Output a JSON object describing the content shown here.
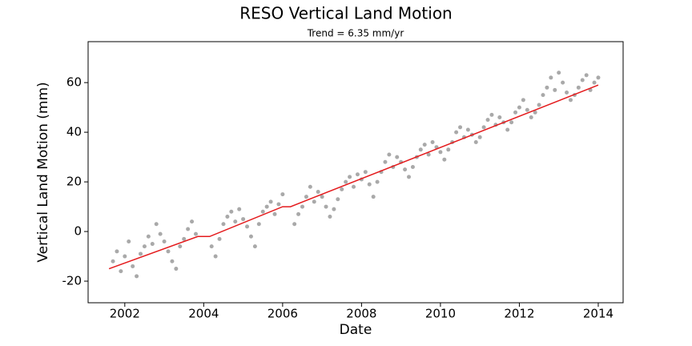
{
  "chart_data": {
    "type": "scatter",
    "title": "RESO Vertical Land Motion",
    "subtitle": "Trend = 6.35 mm/yr",
    "x_label": "Date",
    "y_label": "Vertical Land Motion (mm)",
    "xlim": [
      2001.07,
      2014.63
    ],
    "ylim": [
      -28.7,
      76.5
    ],
    "xticks": [
      2002,
      2004,
      2006,
      2008,
      2010,
      2012,
      2014
    ],
    "yticks": [
      -20,
      0,
      20,
      40,
      60
    ],
    "grid": false,
    "series": [
      {
        "kind": "points",
        "color": "#a9a9a9",
        "x": [
          2001.7,
          2001.8,
          2001.9,
          2002.0,
          2002.1,
          2002.2,
          2002.3,
          2002.4,
          2002.5,
          2002.6,
          2002.7,
          2002.8,
          2002.9,
          2003.0,
          2003.1,
          2003.2,
          2003.3,
          2003.4,
          2003.5,
          2003.6,
          2003.7,
          2003.8,
          2004.2,
          2004.3,
          2004.4,
          2004.5,
          2004.6,
          2004.7,
          2004.8,
          2004.9,
          2005.0,
          2005.1,
          2005.2,
          2005.3,
          2005.4,
          2005.5,
          2005.6,
          2005.7,
          2005.8,
          2005.9,
          2006.0,
          2006.3,
          2006.4,
          2006.5,
          2006.6,
          2006.7,
          2006.8,
          2006.9,
          2007.0,
          2007.1,
          2007.2,
          2007.3,
          2007.4,
          2007.5,
          2007.6,
          2007.7,
          2007.8,
          2007.9,
          2008.0,
          2008.1,
          2008.2,
          2008.3,
          2008.4,
          2008.5,
          2008.6,
          2008.7,
          2008.8,
          2008.9,
          2009.0,
          2009.1,
          2009.2,
          2009.3,
          2009.4,
          2009.5,
          2009.6,
          2009.7,
          2009.8,
          2009.9,
          2010.0,
          2010.1,
          2010.2,
          2010.3,
          2010.4,
          2010.5,
          2010.6,
          2010.7,
          2010.8,
          2010.9,
          2011.0,
          2011.1,
          2011.2,
          2011.3,
          2011.4,
          2011.5,
          2011.6,
          2011.7,
          2011.8,
          2011.9,
          2012.0,
          2012.1,
          2012.2,
          2012.3,
          2012.4,
          2012.5,
          2012.6,
          2012.7,
          2012.8,
          2012.9,
          2013.0,
          2013.1,
          2013.2,
          2013.3,
          2013.4,
          2013.5,
          2013.6,
          2013.7,
          2013.8,
          2013.9,
          2014.0
        ],
        "values": [
          -12,
          -8,
          -16,
          -10,
          -4,
          -14,
          -18,
          -9,
          -6,
          -2,
          -5,
          3,
          -1,
          -4,
          -8,
          -12,
          -15,
          -6,
          -3,
          1,
          4,
          -1,
          -6,
          -10,
          -3,
          3,
          6,
          8,
          4,
          9,
          5,
          2,
          -2,
          -6,
          3,
          8,
          10,
          12,
          7,
          11,
          15,
          3,
          7,
          10,
          14,
          18,
          12,
          16,
          14,
          10,
          6,
          9,
          13,
          17,
          20,
          22,
          18,
          23,
          21,
          24,
          19,
          14,
          20,
          24,
          28,
          31,
          26,
          30,
          28,
          25,
          22,
          26,
          30,
          33,
          35,
          31,
          36,
          34,
          32,
          29,
          33,
          36,
          40,
          42,
          38,
          41,
          39,
          36,
          38,
          42,
          45,
          47,
          43,
          46,
          44,
          41,
          44,
          48,
          50,
          53,
          49,
          46,
          48,
          51,
          55,
          58,
          62,
          57,
          64,
          60,
          56,
          53,
          55,
          58,
          61,
          63,
          57,
          60,
          62
        ]
      },
      {
        "kind": "line",
        "color": "#e41a1c",
        "x": [
          2001.6,
          2003.85,
          2004.15,
          2006.0,
          2006.2,
          2014.0
        ],
        "values": [
          -15,
          -2,
          -2,
          10,
          10,
          59
        ]
      }
    ]
  }
}
